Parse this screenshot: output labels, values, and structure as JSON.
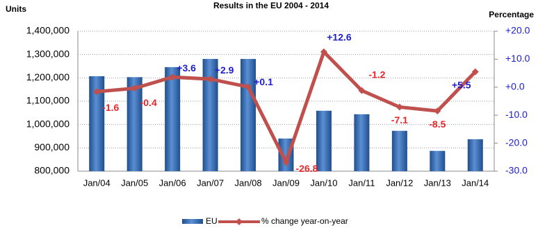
{
  "chart_data": {
    "type": "bar-line",
    "title": "Results in the EU 2004 - 2014",
    "y_label": "Units",
    "y2_label": "Percentage",
    "categories": [
      "Jan/04",
      "Jan/05",
      "Jan/06",
      "Jan/07",
      "Jan/08",
      "Jan/09",
      "Jan/10",
      "Jan/11",
      "Jan/12",
      "Jan/13",
      "Jan/14"
    ],
    "series": [
      {
        "name": "EU",
        "type": "bar",
        "color": "#3a6fb5",
        "values": [
          1207000,
          1203000,
          1246000,
          1281000,
          1281000,
          940000,
          1059000,
          1044000,
          973000,
          887000,
          937000
        ]
      },
      {
        "name": "% change year-on-year",
        "type": "line",
        "axis": "y2",
        "color": "#c0504d",
        "values": [
          -1.6,
          -0.4,
          3.6,
          2.9,
          0.1,
          -26.8,
          12.6,
          -1.2,
          -7.1,
          -8.5,
          5.5
        ],
        "value_labels": [
          "-1.6",
          "-0.4",
          "+3.6",
          "+2.9",
          "+0.1",
          "-26.8",
          "+12.6",
          "-1.2",
          "-7.1",
          "-8.5",
          "+5.5"
        ]
      }
    ],
    "ylim": [
      800000,
      1400000
    ],
    "yticks": [
      {
        "value": 800000,
        "label": "800,000"
      },
      {
        "value": 900000,
        "label": "900,000"
      },
      {
        "value": 1000000,
        "label": "1,000,000"
      },
      {
        "value": 1100000,
        "label": "1,100,000"
      },
      {
        "value": 1200000,
        "label": "1,200,000"
      },
      {
        "value": 1300000,
        "label": "1,300,000"
      },
      {
        "value": 1400000,
        "label": "1,400,000"
      }
    ],
    "y2lim": [
      -30,
      20
    ],
    "y2ticks": [
      {
        "value": -30,
        "label": "-30.0"
      },
      {
        "value": -20,
        "label": "-20.0"
      },
      {
        "value": -10,
        "label": "-10.0"
      },
      {
        "value": 0,
        "label": "+0.0"
      },
      {
        "value": 10,
        "label": "+10.0"
      },
      {
        "value": 20,
        "label": "+20.0"
      }
    ],
    "grid": true
  }
}
